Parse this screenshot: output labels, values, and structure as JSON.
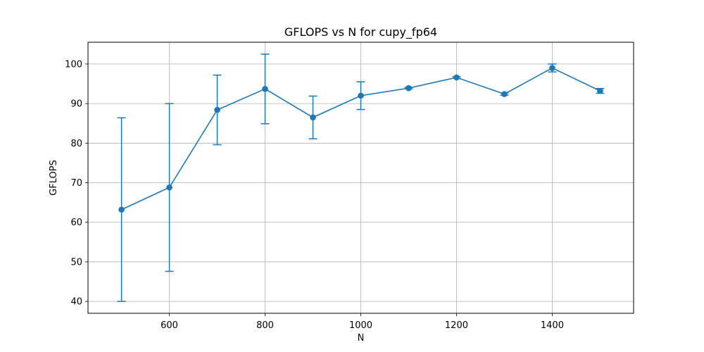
{
  "chart_data": {
    "type": "line",
    "title": "GFLOPS vs N for cupy_fp64",
    "xlabel": "N",
    "ylabel": "GFLOPS",
    "xlim": [
      430,
      1570
    ],
    "ylim": [
      37,
      105.5
    ],
    "xticks": [
      600,
      800,
      1000,
      1200,
      1400
    ],
    "xtick_labels": [
      "600",
      "800",
      "1000",
      "1200",
      "1400"
    ],
    "yticks": [
      40,
      50,
      60,
      70,
      80,
      90,
      100
    ],
    "ytick_labels": [
      "40",
      "50",
      "60",
      "70",
      "80",
      "90",
      "100"
    ],
    "grid": true,
    "color": "#1f77b4",
    "series": [
      {
        "x": [
          500,
          600,
          700,
          800,
          900,
          1000,
          1100,
          1200,
          1300,
          1400,
          1500
        ],
        "y": [
          63.2,
          68.8,
          88.4,
          93.7,
          86.5,
          92.0,
          93.9,
          96.6,
          92.4,
          99.0,
          93.2
        ],
        "yerr": [
          23.2,
          21.2,
          8.8,
          8.8,
          5.4,
          3.5,
          0.2,
          0.2,
          0.3,
          1.0,
          0.6
        ]
      }
    ]
  }
}
